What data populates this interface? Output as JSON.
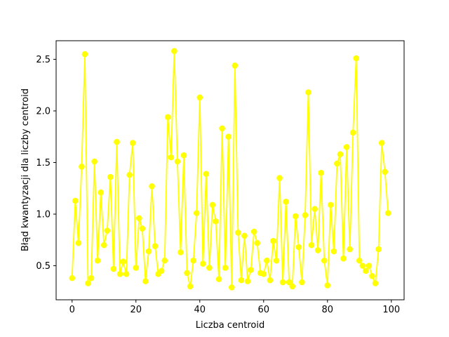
{
  "chart_data": {
    "type": "line",
    "xlabel": "Liczba centroid",
    "ylabel": "Błąd kwantyzacji dla liczby centroid",
    "xlim": [
      -5,
      104
    ],
    "ylim": [
      0.17,
      2.68
    ],
    "xticks": [
      0,
      20,
      40,
      60,
      80,
      100
    ],
    "yticks": [
      0.5,
      1.0,
      1.5,
      2.0,
      2.5
    ],
    "xtick_labels": [
      "0",
      "20",
      "40",
      "60",
      "80",
      "100"
    ],
    "ytick_labels": [
      "0.5",
      "1.0",
      "1.5",
      "2.0",
      "2.5"
    ],
    "grid": false,
    "color": "#ffff00",
    "marker": "circle",
    "x": [
      0,
      1,
      2,
      3,
      4,
      5,
      6,
      7,
      8,
      9,
      10,
      11,
      12,
      13,
      14,
      15,
      16,
      17,
      18,
      19,
      20,
      21,
      22,
      23,
      24,
      25,
      26,
      27,
      28,
      29,
      30,
      31,
      32,
      33,
      34,
      35,
      36,
      37,
      38,
      39,
      40,
      41,
      42,
      43,
      44,
      45,
      46,
      47,
      48,
      49,
      50,
      51,
      52,
      53,
      54,
      55,
      56,
      57,
      58,
      59,
      60,
      61,
      62,
      63,
      64,
      65,
      66,
      67,
      68,
      69,
      70,
      71,
      72,
      73,
      74,
      75,
      76,
      77,
      78,
      79,
      80,
      81,
      82,
      83,
      84,
      85,
      86,
      87,
      88,
      89,
      90,
      91,
      92,
      93,
      94,
      95,
      96,
      97,
      98,
      99
    ],
    "values": [
      0.38,
      1.13,
      0.72,
      1.46,
      2.55,
      0.33,
      0.38,
      1.51,
      0.55,
      1.21,
      0.7,
      0.84,
      1.36,
      0.47,
      1.7,
      0.42,
      0.54,
      0.42,
      1.38,
      1.69,
      0.48,
      0.96,
      0.86,
      0.35,
      0.64,
      1.27,
      0.69,
      0.42,
      0.45,
      0.55,
      1.94,
      1.55,
      2.58,
      1.51,
      0.63,
      1.57,
      0.43,
      0.3,
      0.55,
      1.01,
      2.13,
      0.52,
      1.39,
      0.48,
      1.09,
      0.93,
      0.37,
      1.83,
      0.48,
      1.75,
      0.29,
      2.44,
      0.82,
      0.36,
      0.79,
      0.35,
      0.46,
      0.83,
      0.72,
      0.43,
      0.42,
      0.55,
      0.36,
      0.74,
      0.55,
      1.35,
      0.34,
      1.12,
      0.34,
      0.3,
      0.98,
      0.68,
      0.34,
      0.99,
      2.18,
      0.7,
      1.05,
      0.65,
      1.4,
      0.55,
      0.31,
      1.09,
      0.64,
      1.49,
      1.58,
      0.57,
      1.65,
      0.66,
      1.79,
      2.51,
      0.55,
      0.5,
      0.45,
      0.5,
      0.4,
      0.33,
      0.66,
      1.69,
      1.41,
      1.01
    ]
  }
}
